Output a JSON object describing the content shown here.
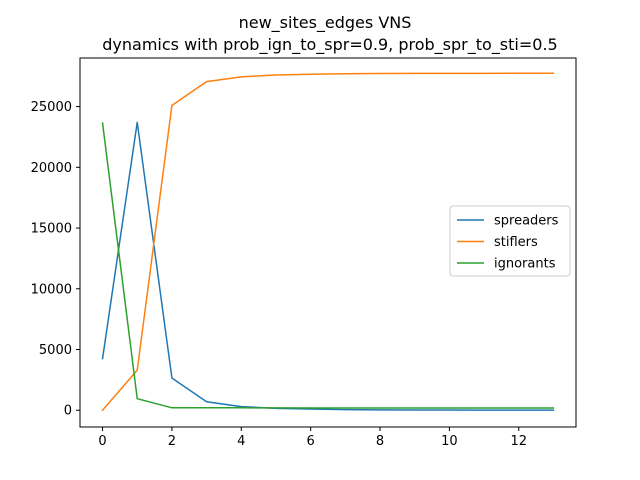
{
  "chart_data": {
    "type": "line",
    "title": "new_sites_edges VNS",
    "subtitle": "dynamics with prob_ign_to_spr=0.9, prob_spr_to_sti=0.5",
    "xlabel": "",
    "ylabel": "",
    "xlim": [
      -0.65,
      13.65
    ],
    "ylim": [
      -1380,
      29000
    ],
    "x_ticks": [
      0,
      2,
      4,
      6,
      8,
      10,
      12
    ],
    "y_ticks": [
      0,
      5000,
      10000,
      15000,
      20000,
      25000
    ],
    "grid": false,
    "legend_position": "center-right",
    "x": [
      0,
      1,
      2,
      3,
      4,
      5,
      6,
      7,
      8,
      9,
      10,
      11,
      12,
      13
    ],
    "series": [
      {
        "name": "spreaders",
        "color": "#1f77b4",
        "values": [
          4250,
          23700,
          2650,
          700,
          300,
          150,
          100,
          50,
          30,
          20,
          15,
          10,
          8,
          5
        ]
      },
      {
        "name": "stiflers",
        "color": "#ff7f0e",
        "values": [
          0,
          3300,
          25100,
          27050,
          27450,
          27600,
          27660,
          27700,
          27720,
          27730,
          27735,
          27738,
          27740,
          27740
        ]
      },
      {
        "name": "ignorants",
        "color": "#2ca02c",
        "values": [
          23650,
          950,
          200,
          200,
          200,
          190,
          185,
          180,
          180,
          180,
          180,
          180,
          180,
          180
        ]
      }
    ]
  }
}
